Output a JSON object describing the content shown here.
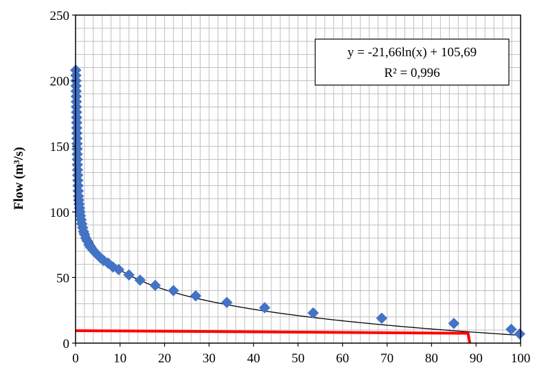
{
  "chart_data": {
    "type": "scatter",
    "title": "",
    "xlabel": "",
    "ylabel": "Flow (m³/s)",
    "xlim": [
      0,
      100
    ],
    "ylim": [
      0,
      250
    ],
    "x_ticks": [
      "0",
      "10",
      "20",
      "30",
      "40",
      "50",
      "60",
      "70",
      "80",
      "90",
      "100"
    ],
    "y_ticks": [
      "0",
      "50",
      "100",
      "150",
      "200",
      "250"
    ],
    "grid": true,
    "grid_minor_x_step": 2,
    "grid_minor_y_step": 10,
    "colors": {
      "points": "#4472C4",
      "trendline": "#000000",
      "red_line": "#FF0000",
      "grid": "#BFBFBF"
    },
    "points": [
      {
        "x": 0.05,
        "y": 208
      },
      {
        "x": 0.08,
        "y": 204
      },
      {
        "x": 0.1,
        "y": 200
      },
      {
        "x": 0.12,
        "y": 196
      },
      {
        "x": 0.14,
        "y": 192
      },
      {
        "x": 0.16,
        "y": 188
      },
      {
        "x": 0.18,
        "y": 184
      },
      {
        "x": 0.2,
        "y": 180
      },
      {
        "x": 0.22,
        "y": 176
      },
      {
        "x": 0.24,
        "y": 172
      },
      {
        "x": 0.26,
        "y": 168
      },
      {
        "x": 0.28,
        "y": 164
      },
      {
        "x": 0.3,
        "y": 160
      },
      {
        "x": 0.32,
        "y": 156
      },
      {
        "x": 0.34,
        "y": 152
      },
      {
        "x": 0.36,
        "y": 148
      },
      {
        "x": 0.38,
        "y": 144
      },
      {
        "x": 0.4,
        "y": 140
      },
      {
        "x": 0.42,
        "y": 136
      },
      {
        "x": 0.45,
        "y": 132
      },
      {
        "x": 0.48,
        "y": 128
      },
      {
        "x": 0.52,
        "y": 124
      },
      {
        "x": 0.56,
        "y": 120
      },
      {
        "x": 0.6,
        "y": 116
      },
      {
        "x": 0.65,
        "y": 112
      },
      {
        "x": 0.7,
        "y": 109
      },
      {
        "x": 0.8,
        "y": 106
      },
      {
        "x": 0.9,
        "y": 103
      },
      {
        "x": 1.0,
        "y": 100
      },
      {
        "x": 1.1,
        "y": 97
      },
      {
        "x": 1.25,
        "y": 94
      },
      {
        "x": 1.4,
        "y": 91
      },
      {
        "x": 1.6,
        "y": 88
      },
      {
        "x": 1.8,
        "y": 85
      },
      {
        "x": 2.0,
        "y": 83
      },
      {
        "x": 2.3,
        "y": 80
      },
      {
        "x": 2.6,
        "y": 78
      },
      {
        "x": 3.0,
        "y": 75
      },
      {
        "x": 3.4,
        "y": 73
      },
      {
        "x": 3.9,
        "y": 71
      },
      {
        "x": 4.4,
        "y": 69
      },
      {
        "x": 5.0,
        "y": 67
      },
      {
        "x": 5.6,
        "y": 65
      },
      {
        "x": 6.3,
        "y": 63
      },
      {
        "x": 7.3,
        "y": 61
      },
      {
        "x": 8.4,
        "y": 58
      },
      {
        "x": 9.7,
        "y": 56
      },
      {
        "x": 12.0,
        "y": 52
      },
      {
        "x": 14.5,
        "y": 48
      },
      {
        "x": 17.9,
        "y": 44
      },
      {
        "x": 22.0,
        "y": 40
      },
      {
        "x": 27.0,
        "y": 36
      },
      {
        "x": 34.0,
        "y": 31
      },
      {
        "x": 42.5,
        "y": 27
      },
      {
        "x": 53.4,
        "y": 23
      },
      {
        "x": 68.8,
        "y": 19
      },
      {
        "x": 85.0,
        "y": 15
      },
      {
        "x": 97.9,
        "y": 10.5
      },
      {
        "x": 99.8,
        "y": 7
      }
    ],
    "trendline": {
      "type": "logarithmic",
      "a": -21.66,
      "b": 105.69,
      "x_start": 0.8,
      "x_end": 100,
      "equation": "y = -21,66ln(x) + 105,69",
      "r2": "R² = 0,996"
    },
    "red_line": [
      {
        "x": 0,
        "y": 9.5
      },
      {
        "x": 88.2,
        "y": 7.5
      },
      {
        "x": 88.6,
        "y": 0
      }
    ]
  }
}
